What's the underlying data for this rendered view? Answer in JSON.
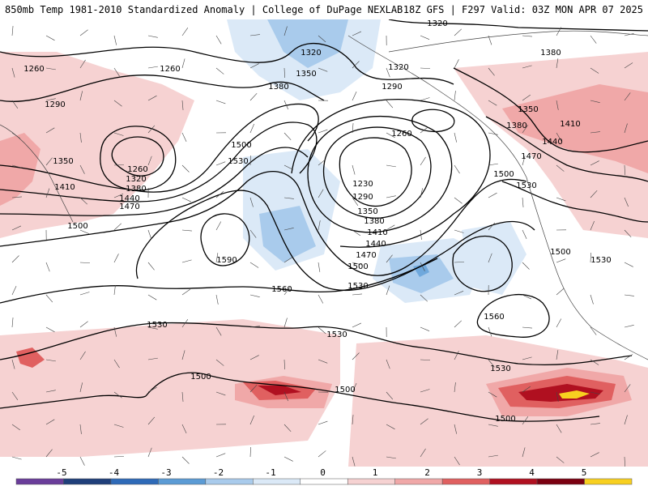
{
  "header": {
    "left_title": "850mb Temp 1981-2010 Standardized Anomaly | College of DuPage NEXLAB",
    "right_title": "18Z GFS | F297 Valid: 03Z MON APR 07 2025"
  },
  "colors": {
    "background": "#ffffff",
    "warm_light": "#f6d2d2",
    "warm_mid": "#f0a8a8",
    "warm_strong": "#e06060",
    "warm_dark": "#b01020",
    "extreme_warm": "#f8d020",
    "cold_light": "#dbe9f7",
    "cold_mid": "#a9cbec",
    "cold_strong": "#6fa8dc",
    "contour": "#000000"
  },
  "contour_labels": [
    {
      "text": "1320",
      "id": "c1320a"
    },
    {
      "text": "1320",
      "id": "c1320b"
    },
    {
      "text": "1380",
      "id": "c1380a"
    },
    {
      "text": "1260",
      "id": "c1260a"
    },
    {
      "text": "1260",
      "id": "c1260b"
    },
    {
      "text": "1290",
      "id": "c1290a"
    },
    {
      "text": "1350",
      "id": "c1350a"
    },
    {
      "text": "1380",
      "id": "c1380b"
    },
    {
      "text": "1320",
      "id": "c1320c"
    },
    {
      "text": "1290",
      "id": "c1290b"
    },
    {
      "text": "1260",
      "id": "c1260c"
    },
    {
      "text": "1350",
      "id": "c1350b"
    },
    {
      "text": "1380",
      "id": "c1380c"
    },
    {
      "text": "1410",
      "id": "c1410a"
    },
    {
      "text": "1440",
      "id": "c1440a"
    },
    {
      "text": "1470",
      "id": "c1470a"
    },
    {
      "text": "1500",
      "id": "c1500a"
    },
    {
      "text": "1530",
      "id": "c1530a"
    },
    {
      "text": "1260",
      "id": "c1260d"
    },
    {
      "text": "1320",
      "id": "c1320d"
    },
    {
      "text": "1380",
      "id": "c1380d"
    },
    {
      "text": "1350",
      "id": "c1350c"
    },
    {
      "text": "1410",
      "id": "c1410b"
    },
    {
      "text": "1440",
      "id": "c1440b"
    },
    {
      "text": "1470",
      "id": "c1470b"
    },
    {
      "text": "1500",
      "id": "c1500b"
    },
    {
      "text": "1230",
      "id": "c1230"
    },
    {
      "text": "1290",
      "id": "c1290c"
    },
    {
      "text": "1350",
      "id": "c1350d"
    },
    {
      "text": "1380",
      "id": "c1380e"
    },
    {
      "text": "1410",
      "id": "c1410c"
    },
    {
      "text": "1440",
      "id": "c1440c"
    },
    {
      "text": "1470",
      "id": "c1470c"
    },
    {
      "text": "1500",
      "id": "c1500c"
    },
    {
      "text": "1500",
      "id": "c1500d"
    },
    {
      "text": "1530",
      "id": "c1530b"
    },
    {
      "text": "1590",
      "id": "c1590"
    },
    {
      "text": "1560",
      "id": "c1560a"
    },
    {
      "text": "1530",
      "id": "c1530c"
    },
    {
      "text": "1560",
      "id": "c1560b"
    },
    {
      "text": "1500",
      "id": "c1500e"
    },
    {
      "text": "1530",
      "id": "c1530d"
    },
    {
      "text": "1530",
      "id": "c1530e"
    },
    {
      "text": "1530",
      "id": "c1530f"
    },
    {
      "text": "1530",
      "id": "c1530g"
    },
    {
      "text": "1500",
      "id": "c1500f"
    },
    {
      "text": "1500",
      "id": "c1500g"
    },
    {
      "text": "1500",
      "id": "c1500h"
    }
  ],
  "legend": {
    "ticks": [
      "-5",
      "-4",
      "-3",
      "-2",
      "-1",
      "0",
      "1",
      "2",
      "3",
      "4",
      "5"
    ],
    "bins": [
      {
        "color": "#6a3d9a"
      },
      {
        "color": "#1f3f7a"
      },
      {
        "color": "#2e6ab8"
      },
      {
        "color": "#5b9bd5"
      },
      {
        "color": "#a9cbec"
      },
      {
        "color": "#dbe9f7"
      },
      {
        "color": "#ffffff"
      },
      {
        "color": "#f6d2d2"
      },
      {
        "color": "#f0a8a8"
      },
      {
        "color": "#e06060"
      },
      {
        "color": "#b01020"
      },
      {
        "color": "#7a0010"
      },
      {
        "color": "#f8d020"
      }
    ]
  }
}
